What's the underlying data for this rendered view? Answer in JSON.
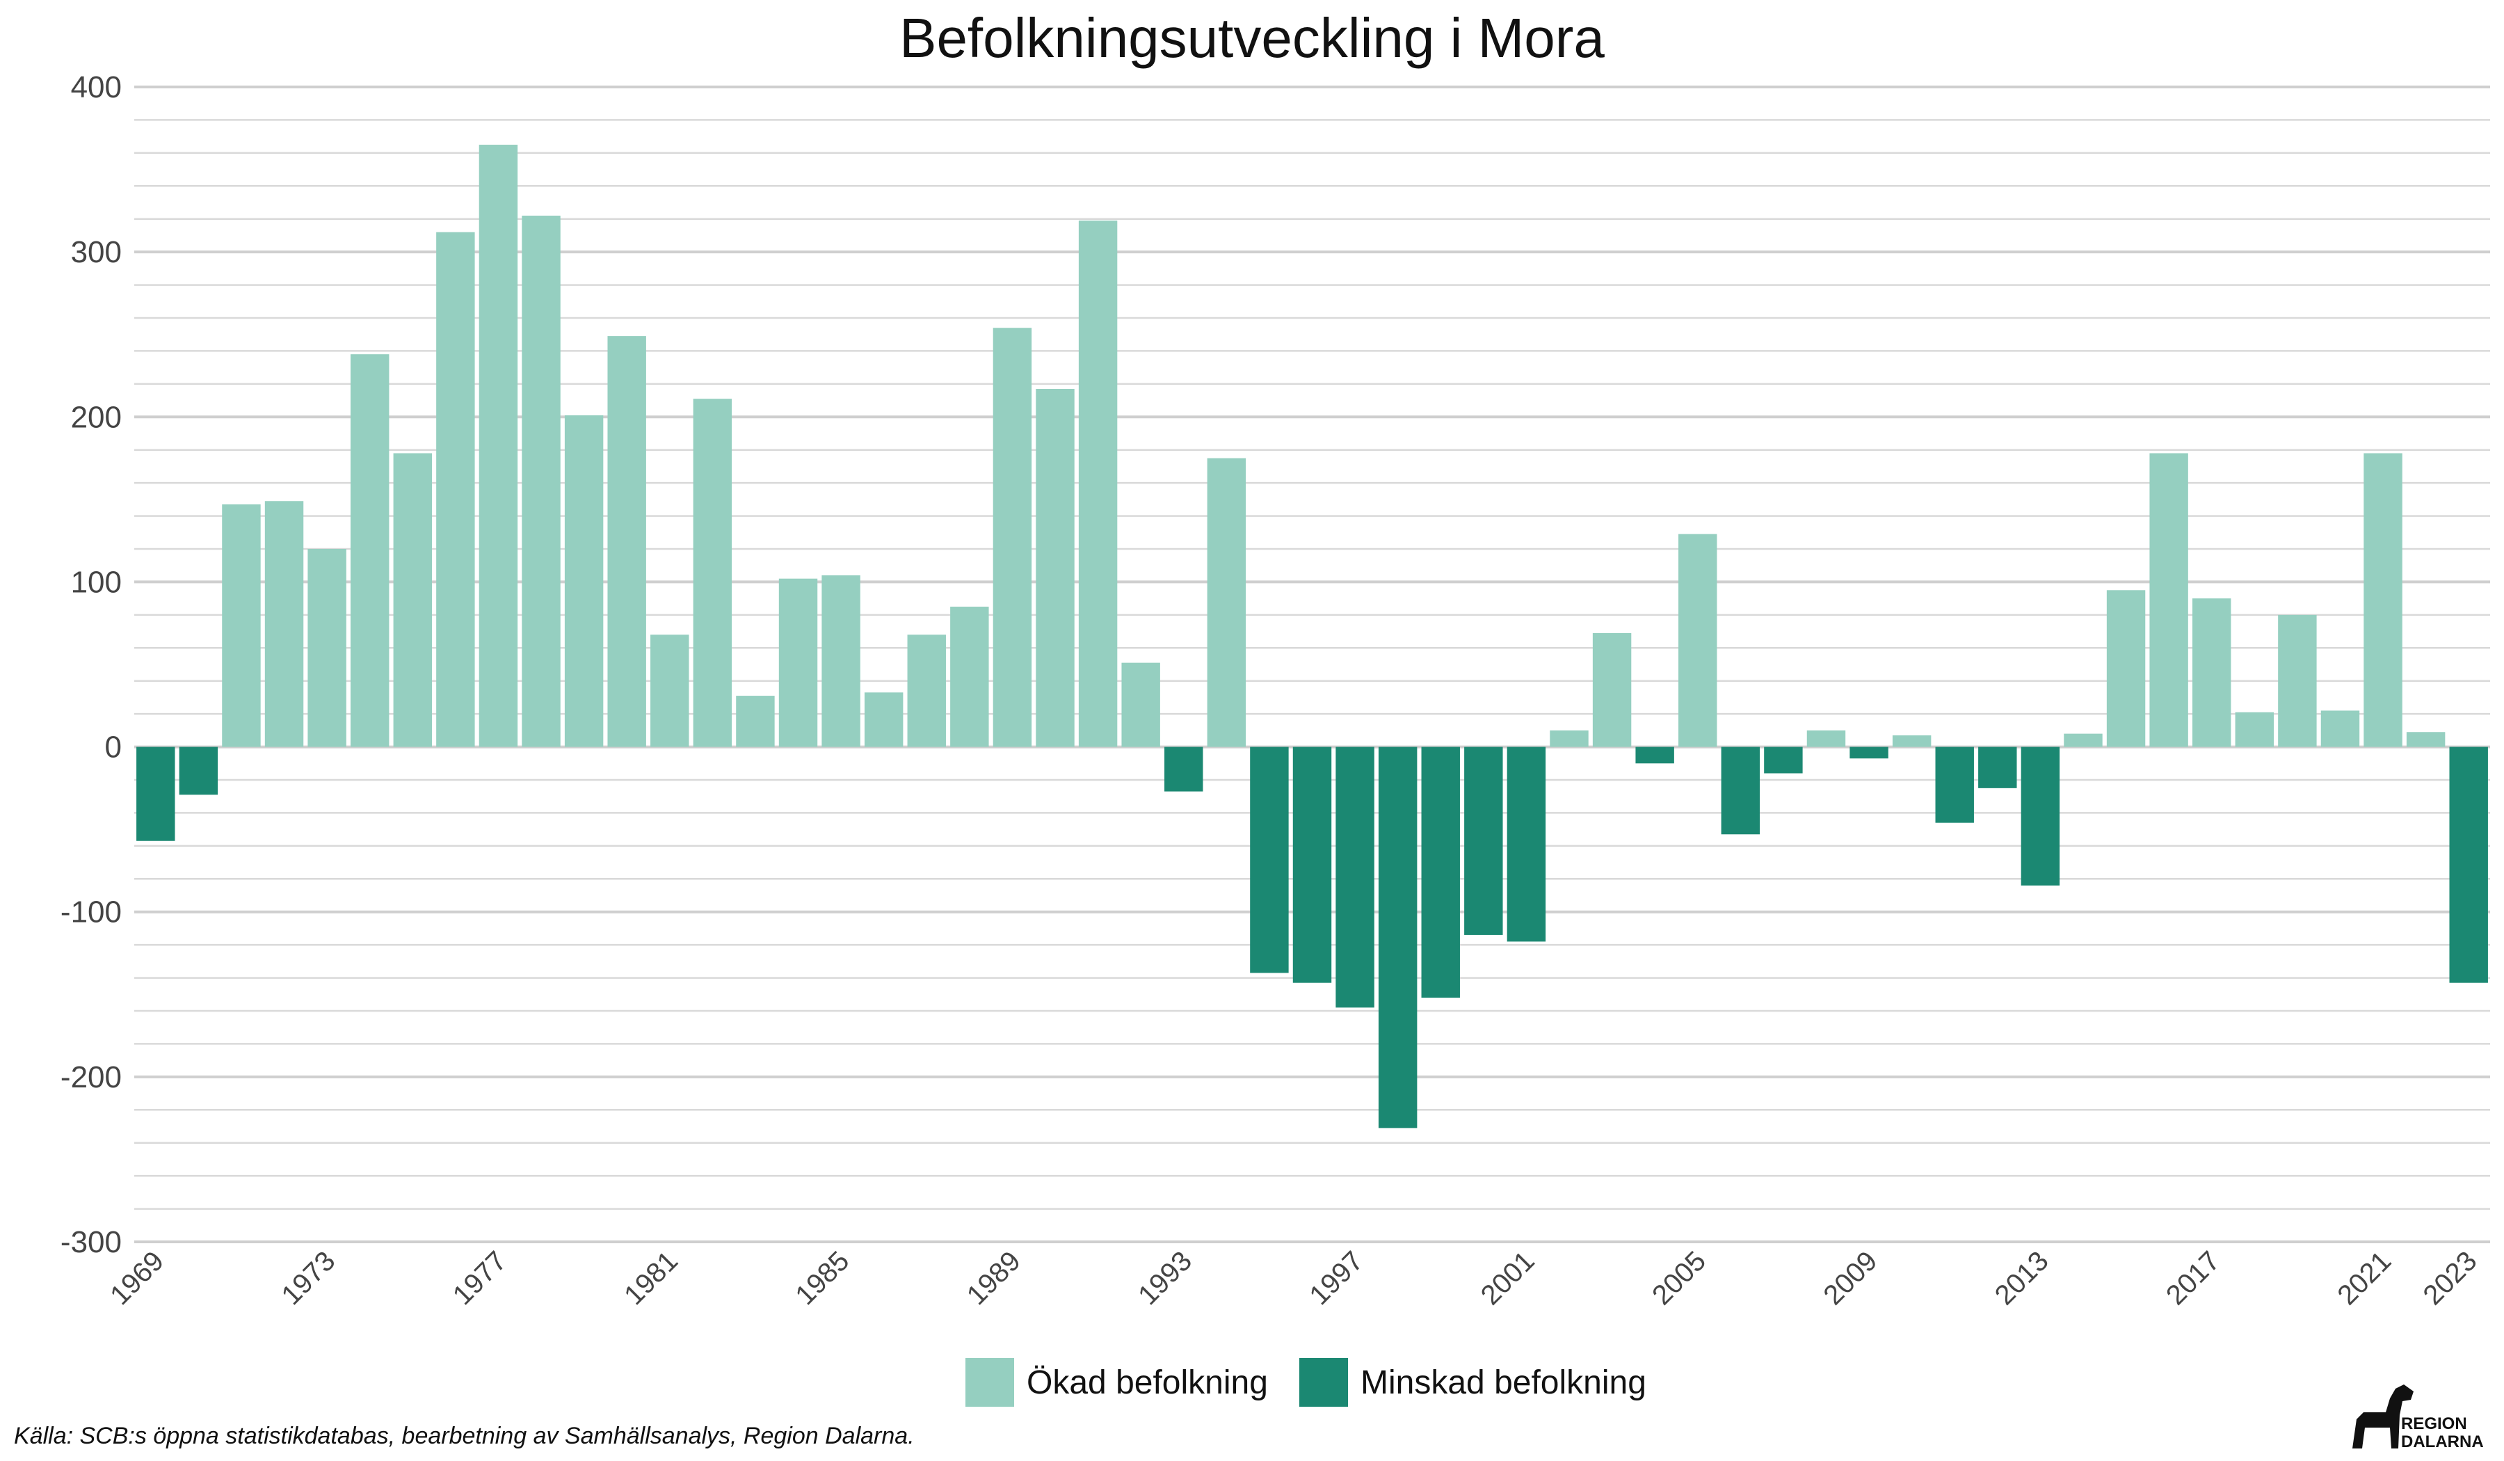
{
  "chart_data": {
    "type": "bar",
    "title": "Befolkningsutveckling i Mora",
    "xlabel": "",
    "ylabel": "",
    "ylim": [
      -300,
      400
    ],
    "yticks": [
      400,
      300,
      200,
      100,
      0,
      -100,
      -200,
      -300
    ],
    "ytick_labels": [
      "400",
      "300",
      "200",
      "100",
      "0",
      "-100",
      "-200",
      "-300"
    ],
    "grid": true,
    "categories": [
      1969,
      1970,
      1971,
      1972,
      1973,
      1974,
      1975,
      1976,
      1977,
      1978,
      1979,
      1980,
      1981,
      1982,
      1983,
      1984,
      1985,
      1986,
      1987,
      1988,
      1989,
      1990,
      1991,
      1992,
      1993,
      1994,
      1995,
      1996,
      1997,
      1998,
      1999,
      2000,
      2001,
      2002,
      2003,
      2004,
      2005,
      2006,
      2007,
      2008,
      2009,
      2010,
      2011,
      2012,
      2013,
      2014,
      2015,
      2016,
      2017,
      2018,
      2019,
      2020,
      2021,
      2022,
      2023
    ],
    "values": [
      -57,
      -29,
      147,
      149,
      120,
      238,
      178,
      312,
      365,
      322,
      201,
      249,
      68,
      211,
      31,
      102,
      104,
      33,
      68,
      85,
      254,
      217,
      319,
      51,
      -27,
      175,
      -137,
      -143,
      -158,
      -231,
      -152,
      -114,
      -118,
      10,
      69,
      -10,
      129,
      -53,
      -16,
      10,
      -7,
      7,
      -46,
      -25,
      -84,
      8,
      95,
      178,
      90,
      21,
      80,
      22,
      178,
      9,
      -143
    ],
    "xtick_labels": [
      "1969",
      "1973",
      "1977",
      "1981",
      "1985",
      "1989",
      "1993",
      "1997",
      "2001",
      "2005",
      "2009",
      "2013",
      "2017",
      "2021",
      "2023"
    ],
    "series": [
      {
        "name": "Ökad befolkning",
        "color": "#95cfc0"
      },
      {
        "name": "Minskad befolkning",
        "color": "#1b8872"
      }
    ],
    "legend_position": "bottom-center"
  },
  "caption": "Källa: SCB:s öppna statistikdatabas, bearbetning av Samhällsanalys, Region Dalarna.",
  "logo": {
    "line1": "REGION",
    "line2": "DALARNA"
  }
}
